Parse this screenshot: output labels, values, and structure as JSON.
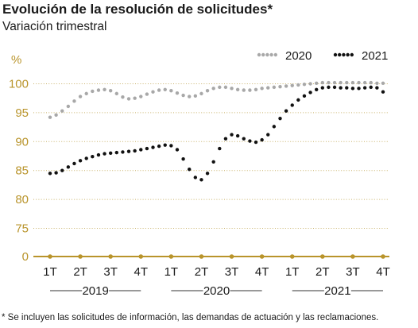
{
  "header": {
    "title": "Evolución de la resolución de solicitudes*",
    "subtitle": "Variación trimestral"
  },
  "footnote": "*  Se incluyen las solicitudes de información, las demandas de actuación y las reclamaciones.",
  "colors": {
    "axis_gold": "#b9942b",
    "grid": "#c9b26a",
    "series_2020": "#a8a8a8",
    "series_2021": "#111111"
  },
  "chart_data": {
    "type": "line",
    "ylabel": "%",
    "y_ticks": [
      "0",
      "75",
      "80",
      "85",
      "90",
      "95",
      "100"
    ],
    "y_axis_break": "0",
    "ylim": [
      75,
      100
    ],
    "x_ticks": [
      "1T",
      "2T",
      "3T",
      "4T",
      "1T",
      "2T",
      "3T",
      "4T",
      "1T",
      "2T",
      "3T",
      "4T"
    ],
    "x_groups": [
      {
        "label": "2019",
        "from": 1,
        "to": 4
      },
      {
        "label": "2020",
        "from": 5,
        "to": 8
      },
      {
        "label": "2021",
        "from": 9,
        "to": 12
      }
    ],
    "x_range": [
      1,
      12
    ],
    "legend_position": "top-right",
    "grid": true,
    "series": [
      {
        "name": "2020",
        "style": "dotted",
        "x": [
          1.0,
          1.2,
          1.4,
          1.6,
          1.8,
          2.0,
          2.2,
          2.4,
          2.6,
          2.8,
          3.0,
          3.2,
          3.4,
          3.6,
          3.8,
          4.0,
          4.2,
          4.4,
          4.6,
          4.8,
          5.0,
          5.2,
          5.4,
          5.6,
          5.8,
          6.0,
          6.2,
          6.4,
          6.6,
          6.8,
          7.0,
          7.2,
          7.4,
          7.6,
          7.8,
          8.0,
          8.2,
          8.4,
          8.6,
          8.8,
          9.0,
          9.2,
          9.4,
          9.6,
          9.8,
          10.0,
          10.2,
          10.4,
          10.6,
          10.8,
          11.0,
          11.2,
          11.4,
          11.6,
          11.8,
          12.0
        ],
        "values": [
          94.2,
          94.6,
          95.3,
          96.1,
          97.0,
          97.8,
          98.3,
          98.7,
          98.9,
          99.0,
          98.8,
          98.3,
          97.7,
          97.4,
          97.5,
          97.8,
          98.2,
          98.6,
          98.9,
          99.0,
          98.8,
          98.4,
          98.0,
          97.8,
          97.9,
          98.3,
          98.8,
          99.2,
          99.4,
          99.4,
          99.2,
          99.0,
          98.9,
          98.9,
          99.0,
          99.2,
          99.3,
          99.4,
          99.5,
          99.6,
          99.7,
          99.8,
          99.9,
          100.0,
          100.1,
          100.2,
          100.2,
          100.2,
          100.2,
          100.2,
          100.2,
          100.2,
          100.2,
          100.2,
          100.1,
          100.1
        ]
      },
      {
        "name": "2021",
        "style": "dotted",
        "x": [
          1.0,
          1.2,
          1.4,
          1.6,
          1.8,
          2.0,
          2.2,
          2.4,
          2.6,
          2.8,
          3.0,
          3.2,
          3.4,
          3.6,
          3.8,
          4.0,
          4.2,
          4.4,
          4.6,
          4.8,
          5.0,
          5.2,
          5.4,
          5.6,
          5.8,
          6.0,
          6.2,
          6.4,
          6.6,
          6.8,
          7.0,
          7.2,
          7.4,
          7.6,
          7.8,
          8.0,
          8.2,
          8.4,
          8.6,
          8.8,
          9.0,
          9.2,
          9.4,
          9.6,
          9.8,
          10.0,
          10.2,
          10.4,
          10.6,
          10.8,
          11.0,
          11.2,
          11.4,
          11.6,
          11.8,
          12.0
        ],
        "values": [
          84.5,
          84.6,
          85.0,
          85.6,
          86.2,
          86.7,
          87.1,
          87.4,
          87.7,
          87.9,
          88.0,
          88.1,
          88.2,
          88.3,
          88.4,
          88.6,
          88.8,
          89.0,
          89.2,
          89.4,
          89.3,
          88.6,
          87.0,
          85.2,
          83.8,
          83.4,
          84.5,
          86.5,
          88.8,
          90.5,
          91.2,
          91.0,
          90.5,
          90.1,
          89.9,
          90.3,
          91.2,
          92.6,
          94.0,
          95.3,
          96.3,
          97.2,
          97.9,
          98.5,
          99.0,
          99.3,
          99.4,
          99.4,
          99.3,
          99.3,
          99.2,
          99.2,
          99.3,
          99.4,
          99.3,
          98.6
        ]
      }
    ]
  }
}
